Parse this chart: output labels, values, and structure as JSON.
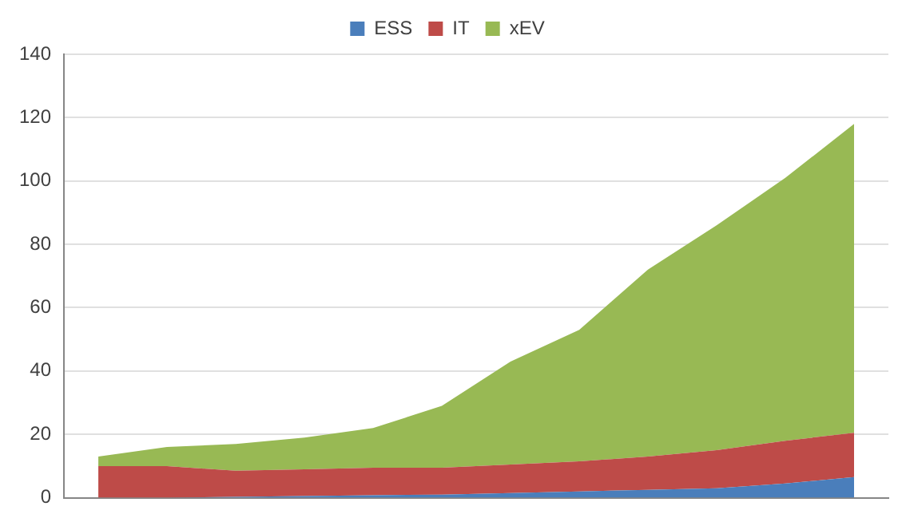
{
  "chart_data": {
    "type": "area",
    "stacked": true,
    "categories": [
      null,
      null,
      null,
      null,
      null,
      null,
      null,
      null,
      null,
      null,
      null,
      null
    ],
    "series": [
      {
        "name": "ESS",
        "color": "#4a7ebb",
        "values": [
          0,
          0,
          0.3,
          0.5,
          0.8,
          1,
          1.5,
          2,
          2.5,
          3,
          4.5,
          6.5
        ]
      },
      {
        "name": "IT",
        "color": "#be4b48",
        "values": [
          10,
          10,
          8.2,
          8.5,
          8.7,
          8.5,
          9,
          9.5,
          10.5,
          12,
          13.5,
          14
        ]
      },
      {
        "name": "xEV",
        "color": "#98b954",
        "values": [
          3,
          6,
          8.5,
          10,
          12.5,
          19.5,
          32.5,
          41.5,
          59,
          71,
          83,
          97.5
        ]
      }
    ],
    "ylim": [
      0,
      140
    ],
    "yticks": [
      0,
      20,
      40,
      60,
      80,
      100,
      120,
      140
    ],
    "grid": "y",
    "legend": "top",
    "tick_labels": "y"
  }
}
